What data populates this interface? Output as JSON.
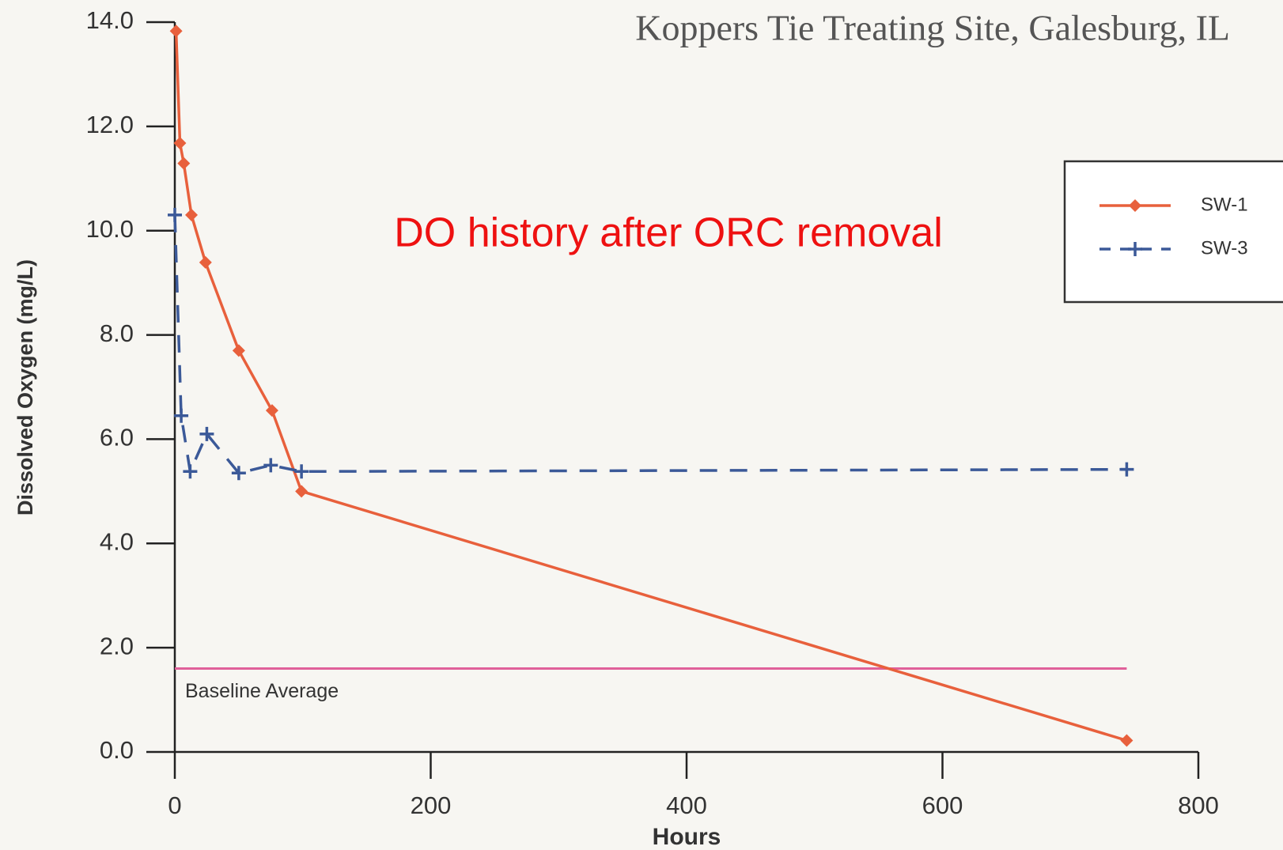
{
  "chart_data": {
    "type": "line",
    "title": "Koppers Tie Treating Site, Galesburg, IL",
    "annotation": "DO history after ORC removal",
    "x_label": "Hours",
    "y_label": "Dissolved Oxygen (mg/L)",
    "xlim": [
      0,
      800
    ],
    "xticks": [
      0,
      200,
      400,
      600,
      800
    ],
    "ylim": [
      0,
      14
    ],
    "yticks": [
      {
        "value": 0,
        "label": "0.0"
      },
      {
        "value": 2,
        "label": "2.0"
      },
      {
        "value": 4,
        "label": "4.0"
      },
      {
        "value": 6,
        "label": "6.0"
      },
      {
        "value": 8,
        "label": "8.0"
      },
      {
        "value": 10,
        "label": "10.0"
      },
      {
        "value": 12,
        "label": "12.0"
      },
      {
        "value": 14,
        "label": "14.0"
      }
    ],
    "series": [
      {
        "name": "SW-1",
        "color": "#e8603c",
        "marker": "diamond",
        "dashed": false,
        "x": [
          1,
          4,
          7,
          13,
          24,
          50,
          76,
          99,
          744
        ],
        "values": [
          13.83,
          11.68,
          11.29,
          10.3,
          9.39,
          7.7,
          6.55,
          5.0,
          0.22
        ]
      },
      {
        "name": "SW-3",
        "color": "#3b5998",
        "marker": "plus",
        "dashed": true,
        "x": [
          0,
          5,
          12,
          25,
          50,
          75,
          99,
          744
        ],
        "values": [
          10.3,
          6.45,
          5.38,
          6.1,
          5.35,
          5.5,
          5.38,
          5.42
        ]
      }
    ],
    "baseline": {
      "label": "Baseline Average",
      "value": 1.6,
      "color": "#e0609a"
    }
  }
}
